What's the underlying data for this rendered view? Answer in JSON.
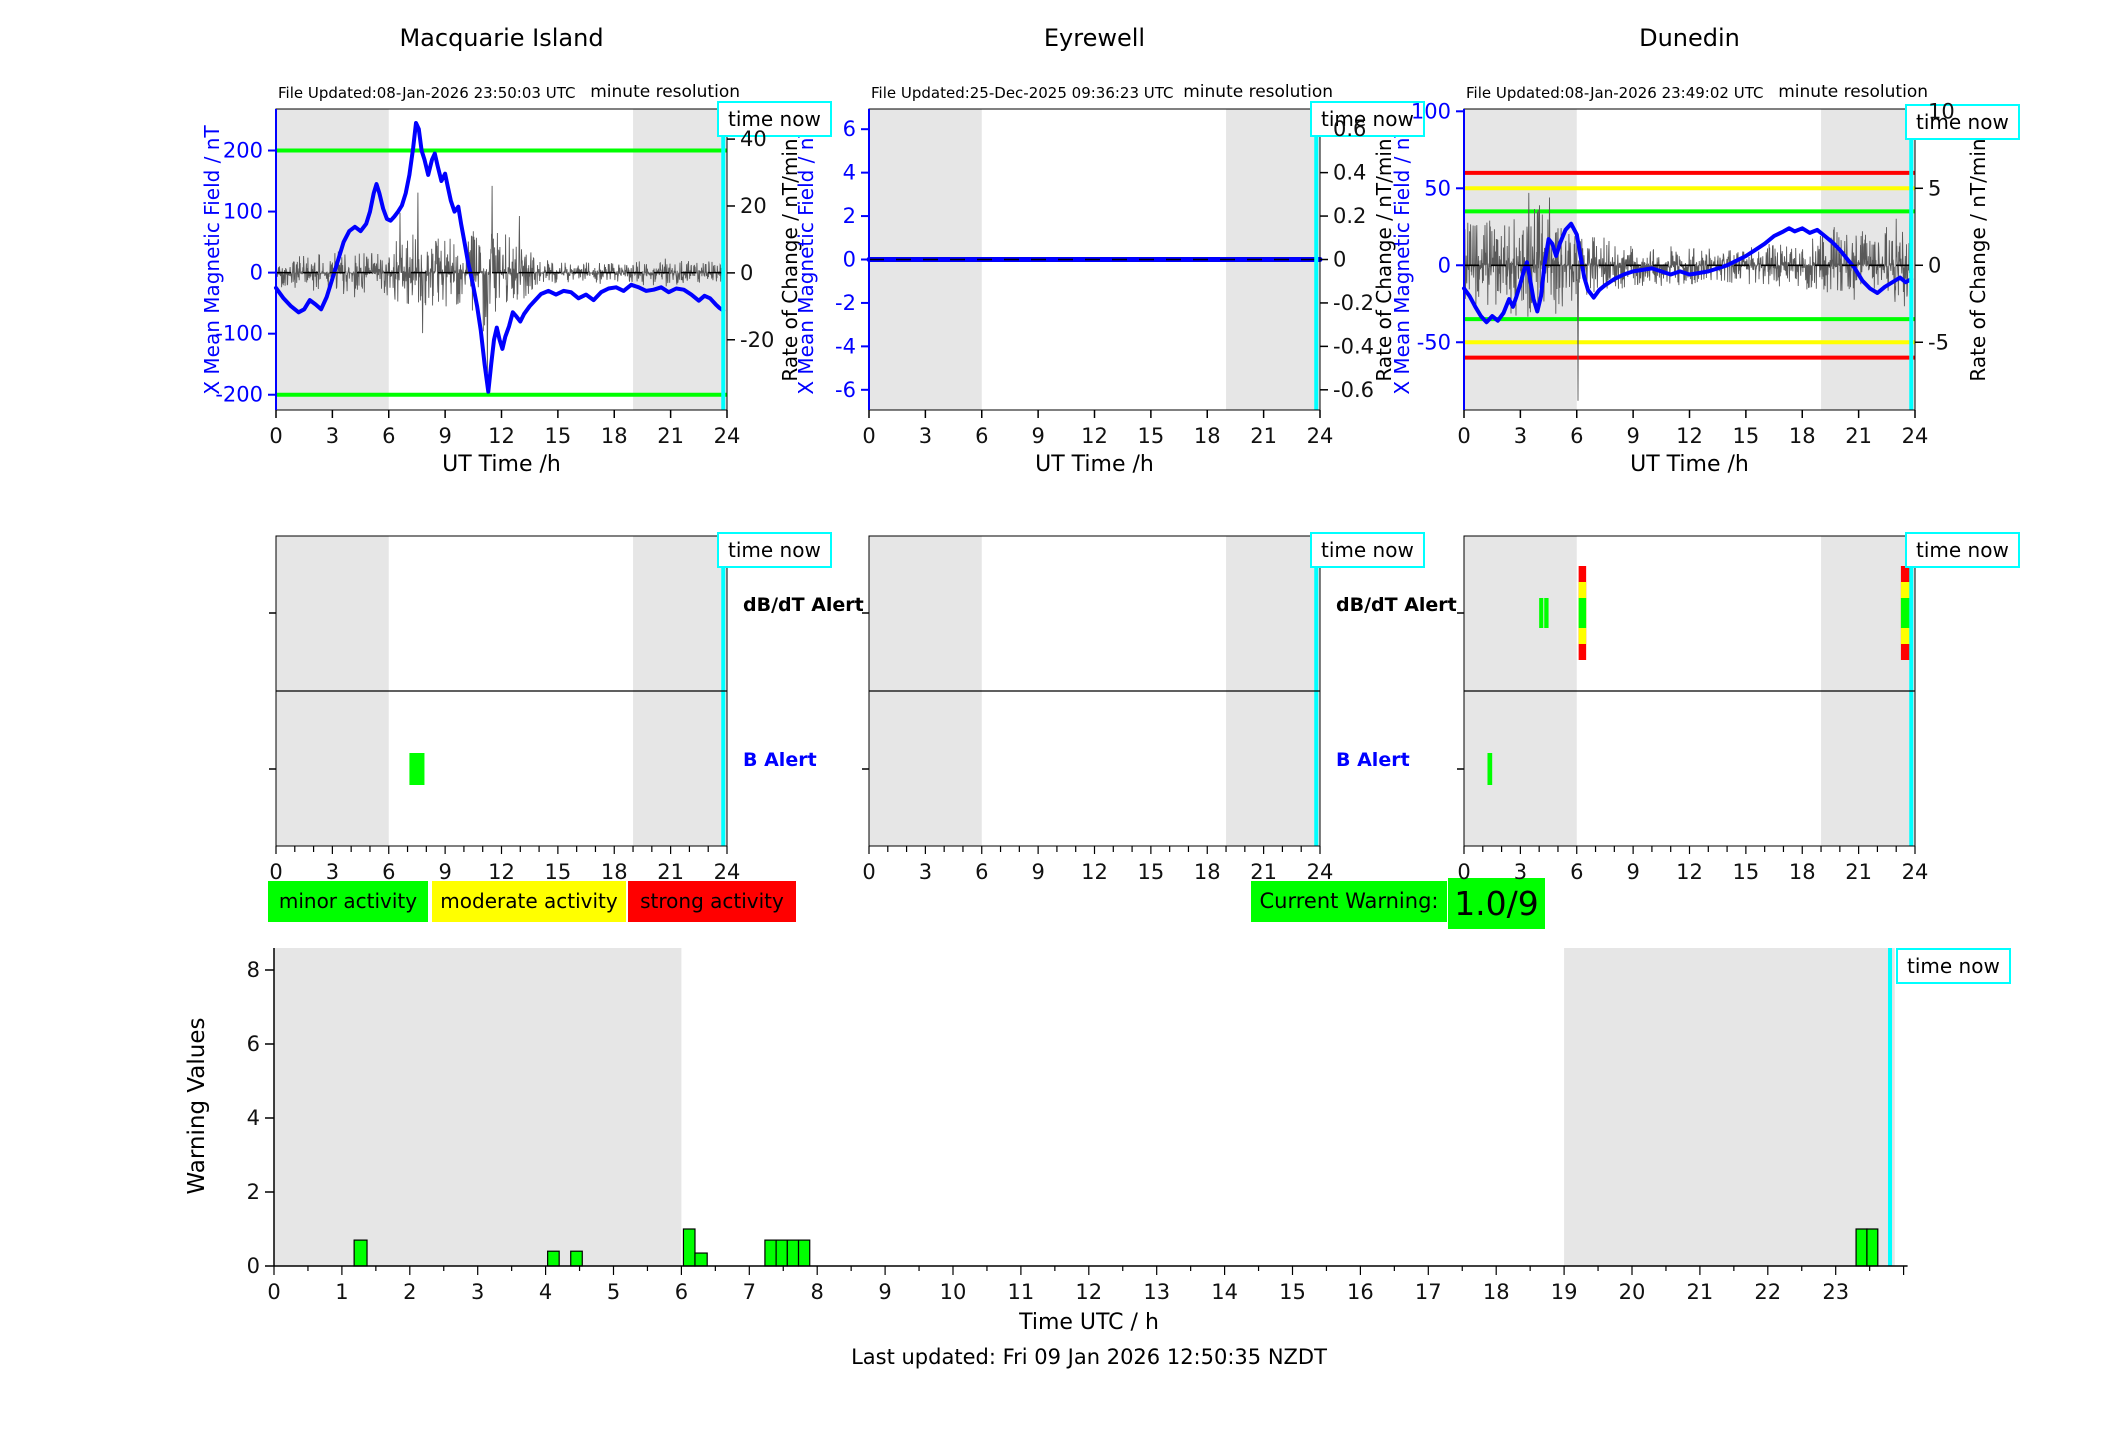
{
  "ui": {
    "time_now_label": "time now",
    "activity_legend": [
      {
        "label": "minor activity",
        "color": "#00ff00"
      },
      {
        "label": "moderate activity",
        "color": "#ffff00"
      },
      {
        "label": "strong activity",
        "color": "#ff0000"
      }
    ],
    "current_warning": {
      "label": "Current Warning:",
      "value": "1.0/9",
      "color": "#00ff00"
    },
    "footer": "Last updated: Fri 09 Jan 2026 12:50:35 NZDT"
  },
  "chart_data": [
    {
      "type": "line",
      "kind": "station",
      "title": "Macquarie Island",
      "file_updated": "File Updated:08-Jan-2026 23:50:03 UTC",
      "resolution_label": "minute resolution",
      "time_now": 23.8,
      "left_axis": {
        "label": "X Mean Magnetic Field / nT",
        "ticks": [
          200,
          100,
          0,
          -100,
          -200
        ],
        "range": [
          -225,
          268
        ],
        "color": "#0000ff"
      },
      "right_axis": {
        "label": "Rate of Change / nT/min",
        "ticks": [
          40,
          20,
          0,
          -20
        ],
        "range": [
          -41,
          49
        ]
      },
      "x_axis": {
        "label": "UT Time /h",
        "ticks": [
          0,
          3,
          6,
          9,
          12,
          15,
          18,
          21,
          24
        ],
        "range": [
          0,
          24
        ]
      },
      "night_bands": [
        [
          0,
          6
        ],
        [
          19,
          24
        ]
      ],
      "thresholds": [
        {
          "value": 200,
          "color": "#00ff00"
        },
        {
          "value": -200,
          "color": "#00ff00"
        }
      ],
      "field_series": {
        "color": "#0000ff",
        "points": [
          [
            0,
            -25
          ],
          [
            0.4,
            -42
          ],
          [
            0.8,
            -55
          ],
          [
            1.2,
            -65
          ],
          [
            1.5,
            -60
          ],
          [
            1.8,
            -45
          ],
          [
            2.1,
            -52
          ],
          [
            2.4,
            -60
          ],
          [
            2.7,
            -40
          ],
          [
            3,
            -10
          ],
          [
            3.3,
            20
          ],
          [
            3.6,
            50
          ],
          [
            3.9,
            68
          ],
          [
            4.2,
            75
          ],
          [
            4.5,
            68
          ],
          [
            4.8,
            80
          ],
          [
            5,
            100
          ],
          [
            5.2,
            130
          ],
          [
            5.35,
            145
          ],
          [
            5.5,
            130
          ],
          [
            5.7,
            105
          ],
          [
            5.9,
            88
          ],
          [
            6.1,
            85
          ],
          [
            6.3,
            92
          ],
          [
            6.5,
            100
          ],
          [
            6.7,
            110
          ],
          [
            6.9,
            130
          ],
          [
            7.1,
            160
          ],
          [
            7.3,
            205
          ],
          [
            7.45,
            245
          ],
          [
            7.6,
            235
          ],
          [
            7.75,
            200
          ],
          [
            7.9,
            185
          ],
          [
            8.1,
            160
          ],
          [
            8.3,
            185
          ],
          [
            8.45,
            195
          ],
          [
            8.6,
            175
          ],
          [
            8.8,
            150
          ],
          [
            9,
            162
          ],
          [
            9.15,
            140
          ],
          [
            9.3,
            118
          ],
          [
            9.5,
            100
          ],
          [
            9.7,
            108
          ],
          [
            9.85,
            80
          ],
          [
            10,
            55
          ],
          [
            10.2,
            20
          ],
          [
            10.45,
            -15
          ],
          [
            10.7,
            -55
          ],
          [
            10.9,
            -95
          ],
          [
            11.1,
            -150
          ],
          [
            11.3,
            -195
          ],
          [
            11.45,
            -150
          ],
          [
            11.6,
            -110
          ],
          [
            11.75,
            -90
          ],
          [
            11.9,
            -110
          ],
          [
            12.05,
            -125
          ],
          [
            12.2,
            -105
          ],
          [
            12.4,
            -88
          ],
          [
            12.6,
            -65
          ],
          [
            12.8,
            -72
          ],
          [
            13,
            -80
          ],
          [
            13.2,
            -68
          ],
          [
            13.5,
            -55
          ],
          [
            13.8,
            -45
          ],
          [
            14.1,
            -35
          ],
          [
            14.5,
            -30
          ],
          [
            14.9,
            -36
          ],
          [
            15.3,
            -30
          ],
          [
            15.7,
            -32
          ],
          [
            16.1,
            -42
          ],
          [
            16.5,
            -36
          ],
          [
            16.9,
            -45
          ],
          [
            17.3,
            -32
          ],
          [
            17.7,
            -26
          ],
          [
            18.1,
            -24
          ],
          [
            18.5,
            -30
          ],
          [
            18.9,
            -20
          ],
          [
            19.3,
            -24
          ],
          [
            19.7,
            -30
          ],
          [
            20.1,
            -28
          ],
          [
            20.5,
            -24
          ],
          [
            20.9,
            -32
          ],
          [
            21.3,
            -26
          ],
          [
            21.7,
            -28
          ],
          [
            22.1,
            -36
          ],
          [
            22.5,
            -46
          ],
          [
            22.8,
            -38
          ],
          [
            23.1,
            -42
          ],
          [
            23.4,
            -52
          ],
          [
            23.6,
            -58
          ],
          [
            23.8,
            -62
          ]
        ]
      },
      "rate_noise": {
        "seed": 42,
        "hourly_amplitude": [
          3,
          3.5,
          4,
          4.5,
          5.5,
          4.5,
          6,
          9,
          7,
          8,
          6,
          13,
          9,
          6,
          3.5,
          2.5,
          2,
          2.5,
          2,
          2.5,
          3.5,
          3,
          2.5,
          2.5
        ],
        "spikes": [
          [
            6.6,
            18
          ],
          [
            7.55,
            24
          ],
          [
            7.8,
            -18
          ],
          [
            11.25,
            -30
          ],
          [
            11.5,
            26
          ],
          [
            12.95,
            17
          ]
        ]
      },
      "alerts": {
        "db_dt_label": "dB/dT Alert",
        "b_label": "B Alert",
        "show_labels": true,
        "db_dt_events": [],
        "b_events": [
          {
            "start": 7.1,
            "end": 7.9
          }
        ]
      }
    },
    {
      "type": "line",
      "kind": "station",
      "title": "Eyrewell",
      "file_updated": "File Updated:25-Dec-2025 09:36:23 UTC",
      "resolution_label": "minute resolution",
      "time_now": 23.8,
      "left_axis": {
        "label": "X Mean Magnetic Field / nT",
        "ticks": [
          6,
          4,
          2,
          0,
          -2,
          -4,
          -6
        ],
        "range": [
          -6.93,
          6.93
        ],
        "color": "#0000ff"
      },
      "right_axis": {
        "label": "Rate of Change / nT/min",
        "ticks": [
          0.6,
          0.4,
          0.2,
          0,
          -0.2,
          -0.4,
          -0.6
        ],
        "range": [
          -0.693,
          0.693
        ]
      },
      "x_axis": {
        "label": "UT Time /h",
        "ticks": [
          0,
          3,
          6,
          9,
          12,
          15,
          18,
          21,
          24
        ],
        "range": [
          0,
          24
        ]
      },
      "night_bands": [
        [
          0,
          6
        ],
        [
          19,
          24
        ]
      ],
      "thresholds": [],
      "field_series": {
        "color": "#0000ff",
        "points": [
          [
            0,
            0
          ],
          [
            24,
            0
          ]
        ]
      },
      "rate_noise": null,
      "alerts": {
        "db_dt_label": "dB/dT Alert",
        "b_label": "B Alert",
        "show_labels": true,
        "db_dt_events": [],
        "b_events": []
      }
    },
    {
      "type": "line",
      "kind": "station",
      "title": "Dunedin",
      "file_updated": "File Updated:08-Jan-2026 23:49:02 UTC",
      "resolution_label": "minute resolution",
      "time_now": 23.8,
      "left_axis": {
        "label": "X Mean Magnetic Field / nT",
        "ticks": [
          100,
          50,
          0,
          -50
        ],
        "range": [
          -94,
          101.5
        ],
        "color": "#0000ff"
      },
      "right_axis": {
        "label": "Rate of Change / nT/min",
        "ticks": [
          10,
          5,
          0,
          -5
        ],
        "range": [
          -9.4,
          10.15
        ]
      },
      "x_axis": {
        "label": "UT Time /h",
        "ticks": [
          0,
          3,
          6,
          9,
          12,
          15,
          18,
          21,
          24
        ],
        "range": [
          0,
          24
        ]
      },
      "night_bands": [
        [
          0,
          6
        ],
        [
          19,
          24
        ]
      ],
      "thresholds": [
        {
          "value": 60,
          "color": "#ff0000"
        },
        {
          "value": -60,
          "color": "#ff0000"
        },
        {
          "value": 50,
          "color": "#ffff00"
        },
        {
          "value": -50,
          "color": "#ffff00"
        },
        {
          "value": 35,
          "color": "#00ff00"
        },
        {
          "value": -35,
          "color": "#00ff00"
        }
      ],
      "field_series": {
        "color": "#0000ff",
        "points": [
          [
            0,
            -15
          ],
          [
            0.3,
            -20
          ],
          [
            0.6,
            -27
          ],
          [
            0.9,
            -33
          ],
          [
            1.2,
            -37
          ],
          [
            1.5,
            -33
          ],
          [
            1.8,
            -36
          ],
          [
            2.1,
            -31
          ],
          [
            2.4,
            -22
          ],
          [
            2.6,
            -27
          ],
          [
            2.8,
            -20
          ],
          [
            3,
            -12
          ],
          [
            3.2,
            -3
          ],
          [
            3.35,
            2
          ],
          [
            3.5,
            -8
          ],
          [
            3.7,
            -22
          ],
          [
            3.9,
            -30
          ],
          [
            4.1,
            -20
          ],
          [
            4.3,
            2
          ],
          [
            4.5,
            17
          ],
          [
            4.7,
            14
          ],
          [
            4.9,
            6
          ],
          [
            5.1,
            14
          ],
          [
            5.4,
            23
          ],
          [
            5.7,
            27
          ],
          [
            6,
            20
          ],
          [
            6.2,
            6
          ],
          [
            6.4,
            -8
          ],
          [
            6.6,
            -16
          ],
          [
            6.9,
            -21
          ],
          [
            7.2,
            -16
          ],
          [
            7.5,
            -13
          ],
          [
            8,
            -9
          ],
          [
            8.5,
            -6
          ],
          [
            9,
            -4
          ],
          [
            9.5,
            -3
          ],
          [
            10,
            -2
          ],
          [
            10.5,
            -4
          ],
          [
            11,
            -6
          ],
          [
            11.5,
            -4
          ],
          [
            12,
            -6
          ],
          [
            12.5,
            -5
          ],
          [
            13,
            -4
          ],
          [
            13.5,
            -2
          ],
          [
            14,
            0
          ],
          [
            14.5,
            3
          ],
          [
            15,
            6
          ],
          [
            15.5,
            10
          ],
          [
            16,
            14
          ],
          [
            16.5,
            19
          ],
          [
            17,
            22
          ],
          [
            17.3,
            24
          ],
          [
            17.6,
            22
          ],
          [
            18,
            24
          ],
          [
            18.4,
            21
          ],
          [
            18.8,
            23
          ],
          [
            19.2,
            19
          ],
          [
            19.6,
            15
          ],
          [
            20,
            10
          ],
          [
            20.4,
            4
          ],
          [
            20.8,
            -2
          ],
          [
            21.2,
            -10
          ],
          [
            21.6,
            -15
          ],
          [
            22,
            -18
          ],
          [
            22.4,
            -14
          ],
          [
            22.8,
            -11
          ],
          [
            23.2,
            -8
          ],
          [
            23.5,
            -11
          ],
          [
            23.8,
            -9
          ]
        ]
      },
      "rate_noise": {
        "seed": 1234,
        "hourly_amplitude": [
          2,
          2.2,
          2,
          2.6,
          2.8,
          2.3,
          1.6,
          1.4,
          1.2,
          1,
          1,
          1,
          0.9,
          0.8,
          0.8,
          0.9,
          1,
          1,
          1,
          1.6,
          1.9,
          1.6,
          1.6,
          2.2
        ],
        "spikes": [
          [
            3.45,
            4.7
          ],
          [
            4.55,
            4.4
          ],
          [
            6.07,
            -8.8
          ],
          [
            23.75,
            8.8
          ]
        ]
      },
      "alerts": {
        "db_dt_label": "dB/dT Alert",
        "b_label": "B Alert",
        "show_labels": false,
        "db_dt_events": [
          {
            "start": 4.0,
            "end": 4.22,
            "style": "green"
          },
          {
            "start": 4.27,
            "end": 4.5,
            "style": "green"
          },
          {
            "start": 6.1,
            "end": 6.5,
            "style": "stack"
          },
          {
            "start": 23.25,
            "end": 23.72,
            "style": "stack"
          }
        ],
        "b_events": [
          {
            "start": 1.25,
            "end": 1.5
          }
        ]
      }
    },
    {
      "type": "bar",
      "kind": "warning",
      "ylabel": "Warning Values",
      "xlabel": "Time UTC / h",
      "time_now_label": "time now",
      "y_ticks": [
        0,
        2,
        4,
        6,
        8
      ],
      "ylim": [
        0,
        8.6
      ],
      "x_ticks": [
        0,
        1,
        2,
        3,
        4,
        5,
        6,
        7,
        8,
        9,
        10,
        11,
        12,
        13,
        14,
        15,
        16,
        17,
        18,
        19,
        20,
        21,
        22,
        23
      ],
      "xlim": [
        0,
        24
      ],
      "night_bands": [
        [
          0,
          6
        ],
        [
          19,
          23.87
        ]
      ],
      "time_now": 23.8,
      "bar_color": "#00ff00",
      "bars": [
        {
          "t": 1.18,
          "w": 0.19,
          "h": 0.7
        },
        {
          "t": 4.03,
          "w": 0.17,
          "h": 0.4
        },
        {
          "t": 4.37,
          "w": 0.17,
          "h": 0.4
        },
        {
          "t": 6.03,
          "w": 0.17,
          "h": 1.0
        },
        {
          "t": 6.2,
          "w": 0.18,
          "h": 0.35
        },
        {
          "t": 7.23,
          "w": 0.165,
          "h": 0.7
        },
        {
          "t": 7.395,
          "w": 0.165,
          "h": 0.7
        },
        {
          "t": 7.56,
          "w": 0.165,
          "h": 0.7
        },
        {
          "t": 7.725,
          "w": 0.165,
          "h": 0.7
        },
        {
          "t": 23.3,
          "w": 0.16,
          "h": 1.0
        },
        {
          "t": 23.46,
          "w": 0.16,
          "h": 1.0
        }
      ]
    }
  ]
}
